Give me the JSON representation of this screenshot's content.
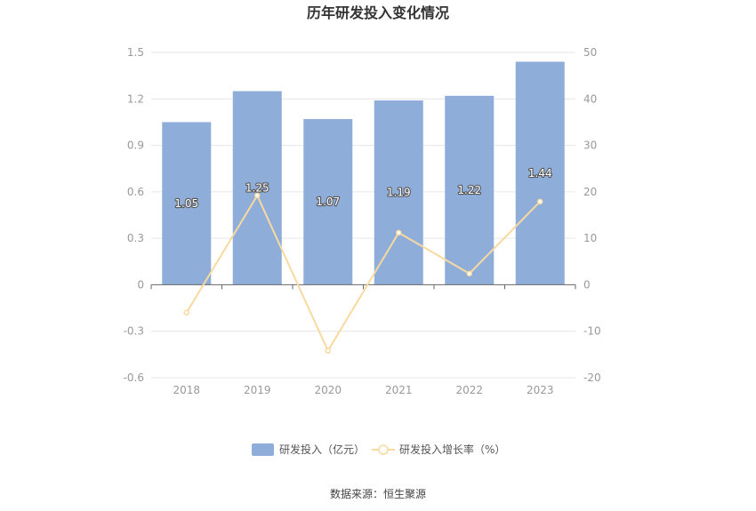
{
  "chart_data": {
    "type": "bar",
    "title": "历年研发投入变化情况",
    "categories": [
      "2018",
      "2019",
      "2020",
      "2021",
      "2022",
      "2023"
    ],
    "series": [
      {
        "name": "研发投入（亿元）",
        "type": "bar",
        "axis": "left",
        "values": [
          1.05,
          1.25,
          1.07,
          1.19,
          1.22,
          1.44
        ],
        "data_labels": [
          "1.05",
          "1.25",
          "1.07",
          "1.19",
          "1.22",
          "1.44"
        ],
        "color": "#8eadd9"
      },
      {
        "name": "研发投入增长率（%）",
        "type": "line",
        "axis": "right",
        "values": [
          -6.0,
          19.2,
          -14.2,
          11.2,
          2.4,
          17.9
        ],
        "color": "#f8d9a0"
      }
    ],
    "y_left": {
      "lim": [
        -0.6,
        1.5
      ],
      "ticks": [
        "-0.6",
        "-0.3",
        "0",
        "0.3",
        "0.6",
        "0.9",
        "1.2",
        "1.5"
      ]
    },
    "y_right": {
      "lim": [
        -20,
        50
      ],
      "ticks": [
        "-20",
        "-10",
        "0",
        "10",
        "20",
        "30",
        "40",
        "50"
      ]
    },
    "grid": true,
    "legend_position": "bottom-center"
  },
  "source_text": "数据来源：恒生聚源"
}
